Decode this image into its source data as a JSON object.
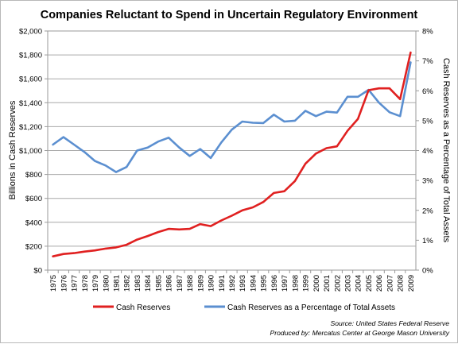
{
  "chart_data": {
    "type": "line",
    "title": "Companies Reluctant to Spend in Uncertain Regulatory Environment",
    "ylabel": "Billions  in Cash Reserves",
    "y2label": "Cash Reserves as a Percentage of Total Assets",
    "ylim": [
      0,
      2000
    ],
    "y2lim": [
      0,
      8
    ],
    "yticks": [
      "$0",
      "$200",
      "$400",
      "$600",
      "$800",
      "$1,000",
      "$1,200",
      "$1,400",
      "$1,600",
      "$1,800",
      "$2,000"
    ],
    "y2ticks": [
      "0%",
      "1%",
      "2%",
      "3%",
      "4%",
      "5%",
      "6%",
      "7%",
      "8%"
    ],
    "categories": [
      "1975",
      "1976",
      "1977",
      "1978",
      "1979",
      "1980",
      "1981",
      "1982",
      "1983",
      "1984",
      "1985",
      "1986",
      "1987",
      "1988",
      "1989",
      "1990",
      "1991",
      "1992",
      "1993",
      "1994",
      "1995",
      "1996",
      "1997",
      "1998",
      "1999",
      "2000",
      "2001",
      "2002",
      "2003",
      "2004",
      "2005",
      "2006",
      "2007",
      "2008",
      "2009"
    ],
    "grid": true,
    "legend_position": "bottom",
    "series": [
      {
        "name": "Cash Reserves",
        "axis": "left",
        "color": "#e02020",
        "values": [
          115,
          135,
          142,
          155,
          165,
          180,
          190,
          212,
          255,
          285,
          318,
          345,
          340,
          345,
          385,
          368,
          415,
          455,
          500,
          525,
          570,
          645,
          660,
          745,
          890,
          975,
          1020,
          1035,
          1165,
          1265,
          1505,
          1520,
          1520,
          1430,
          1820
        ]
      },
      {
        "name": "Cash Reserves as a Percentage of Total Assets",
        "axis": "right",
        "color": "#5b8fd0",
        "values": [
          4.2,
          4.45,
          4.2,
          3.95,
          3.65,
          3.5,
          3.28,
          3.45,
          4.0,
          4.1,
          4.3,
          4.43,
          4.1,
          3.82,
          4.05,
          3.75,
          4.27,
          4.7,
          4.97,
          4.93,
          4.92,
          5.2,
          4.97,
          5.0,
          5.33,
          5.15,
          5.3,
          5.27,
          5.8,
          5.8,
          6.03,
          5.6,
          5.28,
          5.15,
          6.95
        ]
      }
    ]
  },
  "source": {
    "line1": "Source: United States Federal Reserve",
    "line2": "Produced by: Mercatus Center at George Mason University"
  }
}
